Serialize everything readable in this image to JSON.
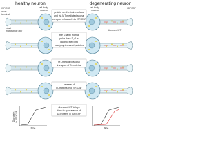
{
  "header": {
    "left_title": "healthy neuron",
    "right_title": "degenerating neuron"
  },
  "labels": {
    "left_isf": "ISF/CSF",
    "axon_terminal": [
      "axon",
      "terminal"
    ],
    "left_cell_body": [
      "cell body",
      "nucleus"
    ],
    "intact_mt": [
      "intact",
      "microtubule (MT)"
    ],
    "right_isf": "ISF/CSF",
    "right_cell_body": [
      "cell body",
      "nucleus"
    ],
    "diseased_mt": [
      "diseased MT"
    ]
  },
  "steps": [
    {
      "lines": [
        "protein synthesis in nucleus",
        "and via MT-mediated axonal",
        "transport released into ISF/CSF"
      ]
    },
    {
      "lines": [
        "the D-label from a",
        "polar dose D₂O is",
        "incorporated into",
        "newly synthesized proteins"
      ]
    },
    {
      "lines": [
        "MT-mediated axonal",
        "transport of D-proteins"
      ]
    },
    {
      "lines": [
        "release of",
        "D-proteins into ISF/CSF"
      ]
    },
    {
      "lines": [
        "diseased MT delays",
        "time to appearance of",
        "D-proteins in ISF/CSF"
      ]
    }
  ],
  "graphs": {
    "y_label": [
      "D-protein",
      "in ISF/CSF"
    ],
    "left_x_label": "time",
    "right_x_label": "time"
  }
}
